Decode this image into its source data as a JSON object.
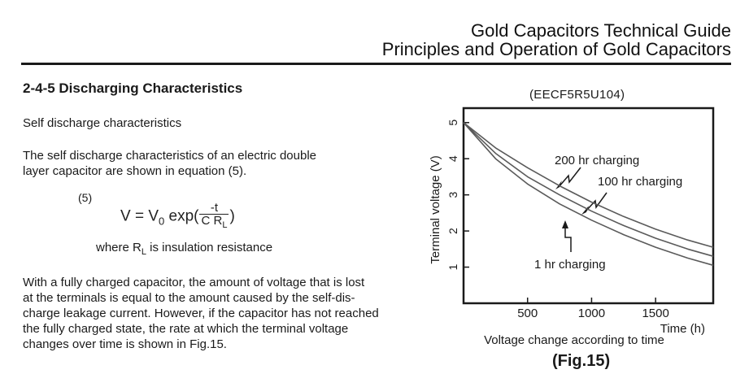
{
  "header": {
    "line1": "Gold Capacitors Technical Guide",
    "line2": "Principles and Operation of Gold Capacitors"
  },
  "section": {
    "title": "2-4-5 Discharging Characteristics",
    "subtitle": "Self discharge characteristics",
    "intro": [
      "The self discharge characteristics of an electric double",
      "layer capacitor are shown in equation (5)."
    ],
    "equation": {
      "number": "(5)",
      "lhs": "V = V",
      "sub0": "0",
      "exp": " exp(",
      "numerator": "-t",
      "denominator": "C R",
      "den_sub": "L",
      "close": ")"
    },
    "where": {
      "pre": "where R",
      "sub": "L",
      "post": " is insulation resistance"
    },
    "body": [
      "With a fully charged capacitor, the amount of voltage that is lost",
      "at the terminals is equal to the amount caused by the self-dis-",
      "charge leakage current. However, if the capacitor has not reached",
      "the fully charged state, the rate at which the terminal voltage",
      "changes over time is shown in Fig.15."
    ]
  },
  "chart_data": {
    "type": "line",
    "model_label": "(EECF5R5U104)",
    "caption": "(Fig.15)",
    "xlabel": "Voltage change according to time",
    "xunit": "Time (h)",
    "ylabel": "Terminal voltage (V)",
    "xlim": [
      0,
      1950
    ],
    "ylim": [
      0,
      5.4
    ],
    "xticks": [
      500,
      1000,
      1500
    ],
    "yticks": [
      1,
      2,
      3,
      4,
      5
    ],
    "grid": false,
    "series": [
      {
        "name": "200 hr charging",
        "x": [
          0,
          250,
          500,
          750,
          1000,
          1250,
          1500,
          1750,
          1950
        ],
        "y": [
          5.0,
          4.3,
          3.75,
          3.25,
          2.8,
          2.4,
          2.05,
          1.75,
          1.55
        ]
      },
      {
        "name": "100 hr charging",
        "x": [
          0,
          250,
          500,
          750,
          1000,
          1250,
          1500,
          1750,
          1950
        ],
        "y": [
          5.0,
          4.15,
          3.5,
          3.0,
          2.55,
          2.15,
          1.8,
          1.5,
          1.3
        ]
      },
      {
        "name": "1 hr charging",
        "x": [
          0,
          250,
          500,
          750,
          1000,
          1250,
          1500,
          1750,
          1950
        ],
        "y": [
          5.0,
          4.0,
          3.3,
          2.75,
          2.3,
          1.9,
          1.55,
          1.25,
          1.05
        ]
      }
    ]
  }
}
